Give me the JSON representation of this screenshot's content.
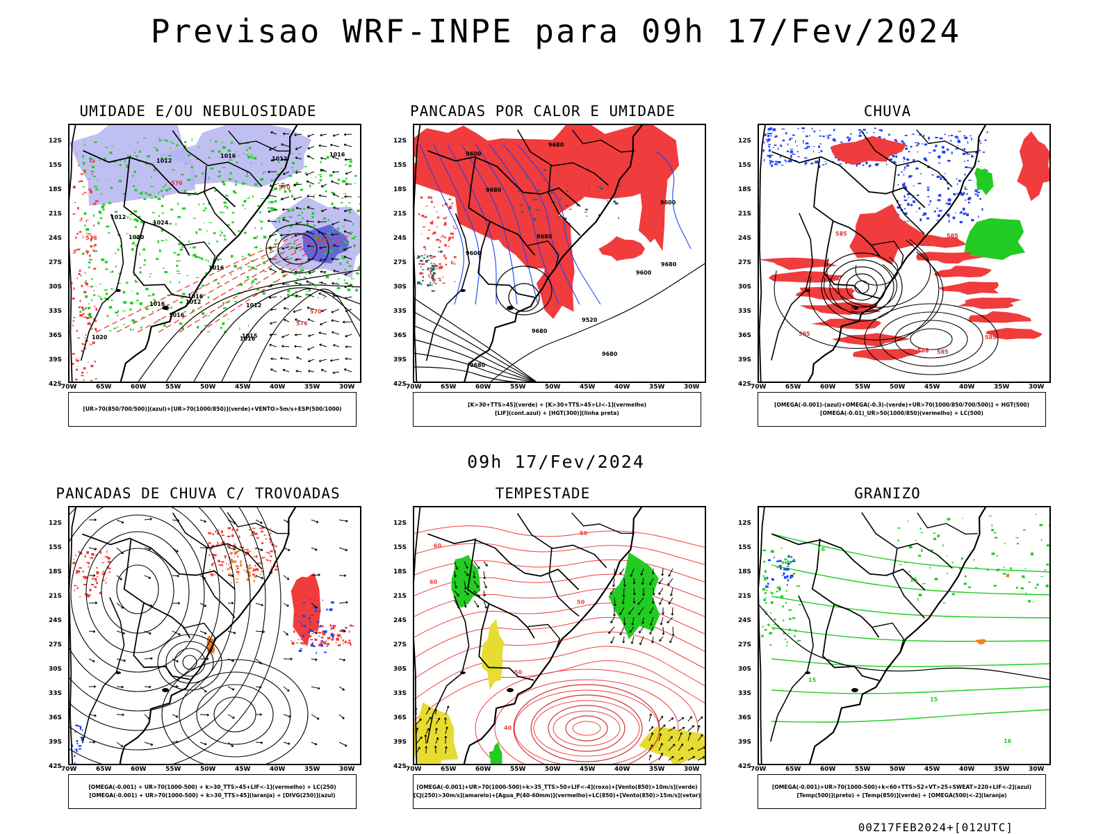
{
  "title": "Previsao WRF-INPE  para 09h 17/Fev/2024",
  "subtitle": "09h 17/Fev/2024",
  "footer": "00Z17FEB2024+[012UTC]",
  "lat_labels": [
    "12S",
    "15S",
    "18S",
    "21S",
    "24S",
    "27S",
    "30S",
    "33S",
    "36S",
    "39S",
    "42S"
  ],
  "lon_labels": [
    "70W",
    "65W",
    "60W",
    "55W",
    "50W",
    "45W",
    "40W",
    "35W",
    "30W"
  ],
  "panels": [
    {
      "title": "UMIDADE E/OU NEBULOSIDADE",
      "legend": [
        "[UR>70(850/700/500)](azul)+[UR>70(1000/850)](verde)+VENTO>5m/s+ESP(500/1000)"
      ],
      "contour_labels": [
        "1016",
        "1016",
        "1012",
        "1016",
        "1012",
        "1016",
        "1012",
        "1016",
        "1015",
        "1020",
        "1012",
        "1016",
        "1024",
        "1012",
        "1016",
        "1020",
        "576",
        "576",
        "570",
        "576",
        "570",
        "576"
      ]
    },
    {
      "title": "PANCADAS POR CALOR E UMIDADE",
      "legend": [
        "[K>30+TTS>45](verde) + [K>30+TTS>45+LI<-1](vermelho)",
        "[LIF](cont.azul) + [HGT(300)](linha preta)"
      ],
      "contour_labels": [
        "9680",
        "9680",
        "9680",
        "9680",
        "9680",
        "9600",
        "9600",
        "9600",
        "9520",
        "9680",
        "9600",
        "9680"
      ]
    },
    {
      "title": "CHUVA",
      "legend": [
        "[OMEGA(-0.001)-(azul)+OMEGA(-0.3)-(verde)+UR>70(1000/850/700/500)] + HGT(500)",
        "[OMEGA(-0.01)_UR>50(1000/850)(vermelho) + LC(500)"
      ],
      "contour_labels": [
        "585",
        "585",
        "585",
        "585",
        "585",
        "588",
        "585"
      ]
    },
    {
      "title": "PANCADAS DE CHUVA C/ TROVOADAS",
      "legend": [
        "[OMEGA(-0.001) + UR>70(1000-500) + k>30_TTS>45+LIF<-1](vermelho) + LC(250)",
        "[OMEGA(-0.001) + UR>70(1000-500) + k>30_TTS>45](laranja) + [DIVG(250)](azul)"
      ],
      "contour_labels": []
    },
    {
      "title": "TEMPESTADE",
      "legend": [
        "[OMEGA(-0.001)+UR>70(1000-500)+k>35_TTS>50+LIF<-4](roxo)+[Vento(850)>10m/s](verde)",
        "[CJ(250)>30m/s](amarelo)+[Agua_P(40-60mm)](vermelho)+LC(850)+[Vento(850)>15m/s](vetor)"
      ],
      "contour_labels": [
        "40",
        "50",
        "60",
        "50",
        "60",
        "50"
      ]
    },
    {
      "title": "GRANIZO",
      "legend": [
        "[OMEGA(-0.001)+UR>70(1000-500)+k<60+TTS>52+VT>25+SWEAT>220+LIF<-2](azul)",
        "[Temp(500)](preto) + [Temp(850)](verde) + [OMEGA(500)<-2](laranja)"
      ],
      "contour_labels": [
        "16",
        "15",
        "15",
        "15",
        "16"
      ]
    }
  ],
  "colors": {
    "red": "#f03c3c",
    "green": "#22cc22",
    "blue": "#2040f0",
    "lightblue": "#b4b4f0",
    "orange": "#f08020",
    "yellow": "#e6dc32",
    "darkgreen": "#306060"
  }
}
